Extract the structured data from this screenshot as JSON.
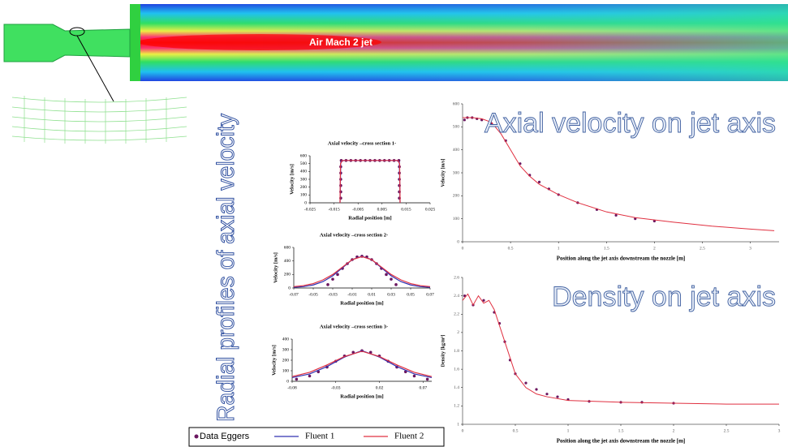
{
  "jet_label": "Air Mach 2 jet",
  "side_title": "Radial profiles of axial velocity",
  "chart_data": [
    {
      "type": "line",
      "title": "Axial velocity –cross section 1-",
      "x_label": "Radial position [m]",
      "y_label": "Velocity [m/s]",
      "xlim": [
        -0.025,
        0.025
      ],
      "xticks": [
        -0.025,
        -0.015,
        -0.005,
        0.005,
        0.015,
        0.025
      ],
      "ylim": [
        0,
        600
      ],
      "yticks": [
        0,
        100,
        200,
        300,
        400,
        500,
        600
      ],
      "series": [
        {
          "name": "Data Eggers",
          "color": "#6a1660",
          "mode": "markers",
          "x": [
            -0.0122,
            -0.0122,
            -0.0122,
            -0.0122,
            -0.0122,
            -0.0122,
            -0.012,
            -0.01,
            -0.008,
            -0.006,
            -0.004,
            -0.002,
            0,
            0.002,
            0.004,
            0.006,
            0.008,
            0.01,
            0.012,
            0.0122,
            0.0122,
            0.0122,
            0.0122,
            0.0122,
            0.0122
          ],
          "values": [
            60,
            140,
            220,
            300,
            380,
            460,
            540,
            540,
            540,
            540,
            540,
            540,
            540,
            540,
            540,
            540,
            540,
            540,
            540,
            460,
            380,
            300,
            220,
            140,
            60
          ]
        },
        {
          "name": "Fluent 1",
          "color": "#3030b0",
          "mode": "lines",
          "x": [
            -0.0125,
            -0.0122,
            -0.011,
            0,
            0.011,
            0.0122,
            0.0125
          ],
          "values": [
            0,
            520,
            540,
            540,
            540,
            520,
            0
          ]
        },
        {
          "name": "Fluent 2",
          "color": "#e03040",
          "mode": "lines",
          "x": [
            -0.0125,
            -0.0123,
            -0.0115,
            0,
            0.0115,
            0.0123,
            0.0125
          ],
          "values": [
            0,
            500,
            540,
            540,
            540,
            500,
            0
          ]
        }
      ]
    },
    {
      "type": "line",
      "title": "Axial velocity –cross section 2-",
      "x_label": "Radial position [m]",
      "y_label": "Velocity [m/s]",
      "xlim": [
        -0.07,
        0.07
      ],
      "xticks": [
        -0.07,
        -0.05,
        -0.03,
        -0.01,
        0.01,
        0.03,
        0.05,
        0.07
      ],
      "ylim": [
        0,
        600
      ],
      "yticks": [
        0,
        200,
        400,
        600
      ],
      "series": [
        {
          "color": "#6a1660",
          "mode": "markers",
          "x": [
            -0.035,
            -0.03,
            -0.025,
            -0.02,
            -0.015,
            -0.01,
            -0.005,
            0,
            0.005,
            0.01,
            0.015,
            0.02,
            0.025,
            0.03,
            0.035
          ],
          "values": [
            50,
            130,
            200,
            290,
            360,
            420,
            460,
            470,
            460,
            420,
            360,
            290,
            200,
            130,
            50
          ]
        },
        {
          "color": "#3030b0",
          "mode": "lines",
          "x": [
            -0.07,
            -0.06,
            -0.05,
            -0.04,
            -0.03,
            -0.02,
            -0.01,
            0,
            0.01,
            0.02,
            0.03,
            0.04,
            0.05,
            0.06,
            0.07
          ],
          "values": [
            10,
            20,
            45,
            95,
            180,
            300,
            420,
            470,
            420,
            300,
            180,
            95,
            45,
            20,
            10
          ]
        },
        {
          "color": "#e03040",
          "mode": "lines",
          "x": [
            -0.07,
            -0.06,
            -0.05,
            -0.04,
            -0.03,
            -0.02,
            -0.01,
            0,
            0.01,
            0.02,
            0.03,
            0.04,
            0.05,
            0.06,
            0.07
          ],
          "values": [
            20,
            35,
            65,
            120,
            200,
            310,
            420,
            465,
            420,
            310,
            200,
            120,
            65,
            35,
            20
          ]
        }
      ]
    },
    {
      "type": "line",
      "title": "Axial velocity –cross section 3-",
      "x_label": "Radial position [m]",
      "y_label": "Velocity [m/s]",
      "xlim": [
        -0.08,
        0.08
      ],
      "xticks": [
        -0.08,
        -0.03,
        0.02,
        0.07
      ],
      "ylim": [
        0,
        400
      ],
      "yticks": [
        0,
        100,
        200,
        300,
        400
      ],
      "series": [
        {
          "color": "#6a1660",
          "mode": "markers",
          "x": [
            -0.075,
            -0.06,
            -0.05,
            -0.04,
            -0.03,
            -0.02,
            -0.01,
            0,
            0.01,
            0.02,
            0.03,
            0.04,
            0.05,
            0.06,
            0.075
          ],
          "values": [
            20,
            50,
            90,
            135,
            190,
            240,
            275,
            290,
            275,
            240,
            190,
            135,
            90,
            50,
            20
          ]
        },
        {
          "color": "#3030b0",
          "mode": "lines",
          "x": [
            -0.08,
            -0.06,
            -0.04,
            -0.02,
            0,
            0.02,
            0.04,
            0.06,
            0.08
          ],
          "values": [
            35,
            70,
            140,
            230,
            290,
            230,
            140,
            70,
            35
          ]
        },
        {
          "color": "#e03040",
          "mode": "lines",
          "x": [
            -0.08,
            -0.06,
            -0.04,
            -0.02,
            0,
            0.02,
            0.04,
            0.06,
            0.08
          ],
          "values": [
            45,
            85,
            155,
            235,
            285,
            235,
            155,
            85,
            45
          ]
        }
      ]
    },
    {
      "type": "line",
      "title": "Axial velocity on jet axis",
      "x_label": "Position along the jet axis downstream the nozzle [m]",
      "y_label": "Velocity [m/s]",
      "xlim": [
        0,
        3.3
      ],
      "xticks": [
        0,
        0.5,
        1,
        1.5,
        2,
        2.5,
        3
      ],
      "ylim": [
        0,
        600
      ],
      "yticks": [
        0,
        100,
        200,
        300,
        400,
        500,
        600
      ],
      "series": [
        {
          "color": "#6a1660",
          "mode": "markers",
          "x": [
            0.02,
            0.05,
            0.1,
            0.15,
            0.2,
            0.3,
            0.45,
            0.6,
            0.7,
            0.8,
            0.9,
            1.0,
            1.2,
            1.4,
            1.6,
            1.8,
            2.0
          ],
          "values": [
            530,
            540,
            540,
            535,
            530,
            515,
            440,
            340,
            290,
            260,
            230,
            205,
            170,
            140,
            115,
            100,
            90
          ]
        },
        {
          "color": "#e03040",
          "mode": "lines",
          "x": [
            0,
            0.1,
            0.2,
            0.3,
            0.4,
            0.5,
            0.6,
            0.7,
            0.8,
            1.0,
            1.2,
            1.5,
            1.8,
            2.2,
            2.6,
            3.0,
            3.25
          ],
          "values": [
            540,
            540,
            535,
            520,
            470,
            400,
            330,
            285,
            250,
            205,
            170,
            130,
            105,
            85,
            68,
            55,
            48
          ]
        }
      ]
    },
    {
      "type": "line",
      "title": "Density on jet axis",
      "x_label": "Position along the jet axis downstream the nozzle [m]",
      "y_label": "Density [kg/m³]",
      "xlim": [
        0,
        3
      ],
      "xticks": [
        0,
        0.5,
        1,
        1.5,
        2,
        2.5,
        3
      ],
      "ylim": [
        1,
        2.6
      ],
      "yticks": [
        1,
        1.2,
        1.4,
        1.6,
        1.8,
        2,
        2.2,
        2.4,
        2.6
      ],
      "series": [
        {
          "color": "#6a1660",
          "mode": "markers",
          "x": [
            0.02,
            0.1,
            0.2,
            0.3,
            0.35,
            0.4,
            0.45,
            0.5,
            0.6,
            0.7,
            0.8,
            0.9,
            1.0,
            1.2,
            1.5,
            1.7,
            2.0
          ],
          "values": [
            2.4,
            2.3,
            2.35,
            2.22,
            2.1,
            1.9,
            1.7,
            1.55,
            1.45,
            1.38,
            1.33,
            1.3,
            1.27,
            1.25,
            1.24,
            1.24,
            1.23
          ]
        },
        {
          "color": "#e03040",
          "mode": "lines",
          "x": [
            0,
            0.05,
            0.1,
            0.15,
            0.2,
            0.25,
            0.3,
            0.4,
            0.5,
            0.6,
            0.7,
            0.8,
            1.0,
            1.5,
            2.0,
            2.5,
            3.0
          ],
          "values": [
            2.35,
            2.42,
            2.3,
            2.4,
            2.32,
            2.35,
            2.25,
            1.9,
            1.55,
            1.4,
            1.33,
            1.3,
            1.26,
            1.24,
            1.23,
            1.22,
            1.22
          ]
        }
      ]
    }
  ]
}
